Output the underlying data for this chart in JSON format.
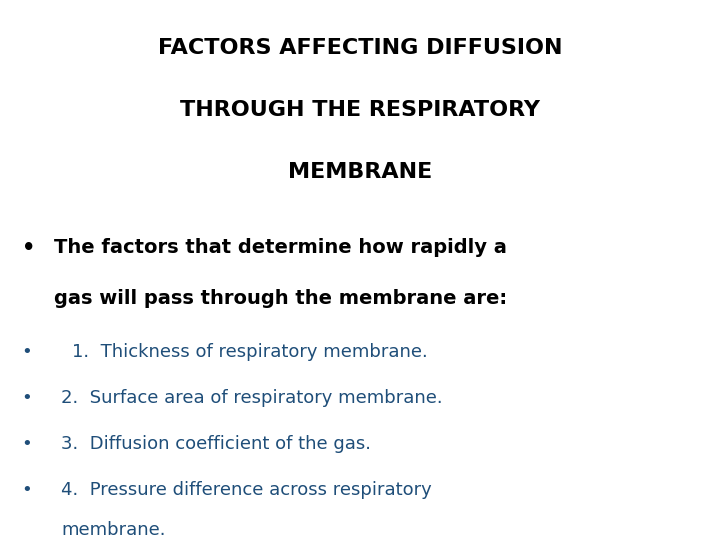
{
  "title_lines": [
    "FACTORS AFFECTING DIFFUSION",
    "THROUGH THE RESPIRATORY",
    "MEMBRANE"
  ],
  "title_color": "#000000",
  "title_fontsize": 16,
  "title_fontweight": "bold",
  "bullet1_line1": "The factors that determine how rapidly a",
  "bullet1_line2": "gas will pass through the membrane are:",
  "bullet1_color": "#000000",
  "bullet1_fontsize": 14,
  "bullet1_fontweight": "bold",
  "subbullet_items": [
    "1.  Thickness of respiratory membrane.",
    "2.  Surface area of respiratory membrane.",
    "3.  Diffusion coefficient of the gas.",
    "4.  Pressure difference across respiratory"
  ],
  "subbullet_item4_cont": "    membrane.",
  "subbullet_color": "#1f4e79",
  "subbullet_fontsize": 13,
  "background_color": "#ffffff",
  "bullet_char": "•",
  "fig_width": 7.2,
  "fig_height": 5.4,
  "dpi": 100
}
